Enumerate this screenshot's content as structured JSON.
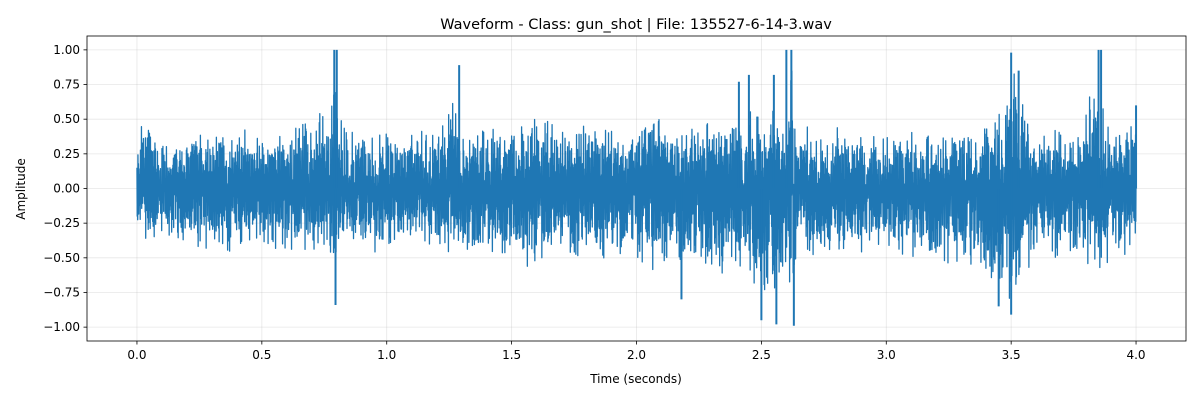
{
  "chart_data": {
    "type": "line",
    "title": "Waveform - Class: gun_shot | File: 135527-6-14-3.wav",
    "xlabel": "Time (seconds)",
    "ylabel": "Amplitude",
    "xlim": [
      -0.2,
      4.2
    ],
    "ylim": [
      -1.1,
      1.1
    ],
    "xticks": [
      0.0,
      0.5,
      1.0,
      1.5,
      2.0,
      2.5,
      3.0,
      3.5,
      4.0
    ],
    "xtick_labels": [
      "0.0",
      "0.5",
      "1.0",
      "1.5",
      "2.0",
      "2.5",
      "3.0",
      "3.5",
      "4.0"
    ],
    "yticks": [
      1.0,
      0.75,
      0.5,
      0.25,
      0.0,
      -0.25,
      -0.5,
      -0.75,
      -1.0
    ],
    "ytick_labels": [
      "1.00",
      "0.75",
      "0.50",
      "0.25",
      "0.00",
      "−0.25",
      "−0.50",
      "−0.75",
      "−1.00"
    ],
    "grid": true,
    "series_color": "#1f77b4",
    "duration": 4.0,
    "envelope": {
      "t": [
        0.0,
        0.02,
        0.1,
        0.2,
        0.3,
        0.4,
        0.5,
        0.6,
        0.7,
        0.78,
        0.79,
        0.8,
        0.81,
        0.82,
        0.85,
        0.9,
        1.0,
        1.1,
        1.2,
        1.28,
        1.3,
        1.4,
        1.5,
        1.6,
        1.7,
        1.8,
        1.9,
        2.0,
        2.1,
        2.2,
        2.3,
        2.4,
        2.5,
        2.55,
        2.6,
        2.61,
        2.62,
        2.63,
        2.64,
        2.7,
        2.8,
        2.9,
        3.0,
        3.1,
        3.2,
        3.3,
        3.4,
        3.45,
        3.5,
        3.52,
        3.55,
        3.6,
        3.7,
        3.8,
        3.84,
        3.85,
        3.86,
        3.87,
        3.9,
        3.95,
        4.0
      ],
      "upper": [
        0.45,
        0.52,
        0.42,
        0.4,
        0.45,
        0.45,
        0.42,
        0.45,
        0.5,
        0.7,
        1.0,
        1.0,
        0.6,
        0.5,
        0.45,
        0.42,
        0.42,
        0.45,
        0.45,
        0.75,
        0.45,
        0.48,
        0.5,
        0.55,
        0.5,
        0.48,
        0.5,
        0.5,
        0.55,
        0.55,
        0.55,
        0.65,
        0.6,
        0.6,
        0.7,
        1.0,
        1.0,
        0.65,
        0.5,
        0.45,
        0.45,
        0.42,
        0.42,
        0.45,
        0.45,
        0.45,
        0.5,
        0.55,
        0.95,
        0.9,
        0.7,
        0.5,
        0.45,
        0.55,
        1.0,
        1.0,
        0.7,
        0.6,
        0.5,
        0.45,
        0.55
      ],
      "lower": [
        -0.3,
        -0.4,
        -0.4,
        -0.45,
        -0.48,
        -0.45,
        -0.45,
        -0.5,
        -0.52,
        -0.6,
        -0.8,
        -0.5,
        -0.4,
        -0.4,
        -0.42,
        -0.45,
        -0.5,
        -0.5,
        -0.45,
        -0.5,
        -0.52,
        -0.5,
        -0.55,
        -0.6,
        -0.55,
        -0.55,
        -0.55,
        -0.6,
        -0.62,
        -0.6,
        -0.62,
        -0.75,
        -0.85,
        -0.95,
        -0.6,
        -1.0,
        -0.9,
        -0.8,
        -0.6,
        -0.55,
        -0.55,
        -0.5,
        -0.5,
        -0.55,
        -0.6,
        -0.55,
        -0.65,
        -0.8,
        -0.9,
        -0.85,
        -0.6,
        -0.55,
        -0.55,
        -0.6,
        -0.7,
        -0.65,
        -0.55,
        -0.6,
        -0.55,
        -0.5,
        -0.5
      ]
    },
    "spikes": [
      {
        "t": 0.79,
        "y": 1.0
      },
      {
        "t": 0.8,
        "y": 1.0
      },
      {
        "t": 0.795,
        "y": -0.84
      },
      {
        "t": 1.29,
        "y": 0.89
      },
      {
        "t": 2.41,
        "y": 0.77
      },
      {
        "t": 2.45,
        "y": 0.82
      },
      {
        "t": 2.55,
        "y": 0.82
      },
      {
        "t": 2.5,
        "y": -0.95
      },
      {
        "t": 2.56,
        "y": -0.98
      },
      {
        "t": 2.6,
        "y": 1.0
      },
      {
        "t": 2.62,
        "y": 1.0
      },
      {
        "t": 2.63,
        "y": -0.99
      },
      {
        "t": 3.5,
        "y": 0.98
      },
      {
        "t": 3.53,
        "y": 0.85
      },
      {
        "t": 3.5,
        "y": -0.91
      },
      {
        "t": 3.45,
        "y": -0.85
      },
      {
        "t": 3.85,
        "y": 1.0
      },
      {
        "t": 3.86,
        "y": 1.0
      },
      {
        "t": 2.18,
        "y": -0.8
      },
      {
        "t": 4.0,
        "y": 0.6
      }
    ]
  }
}
